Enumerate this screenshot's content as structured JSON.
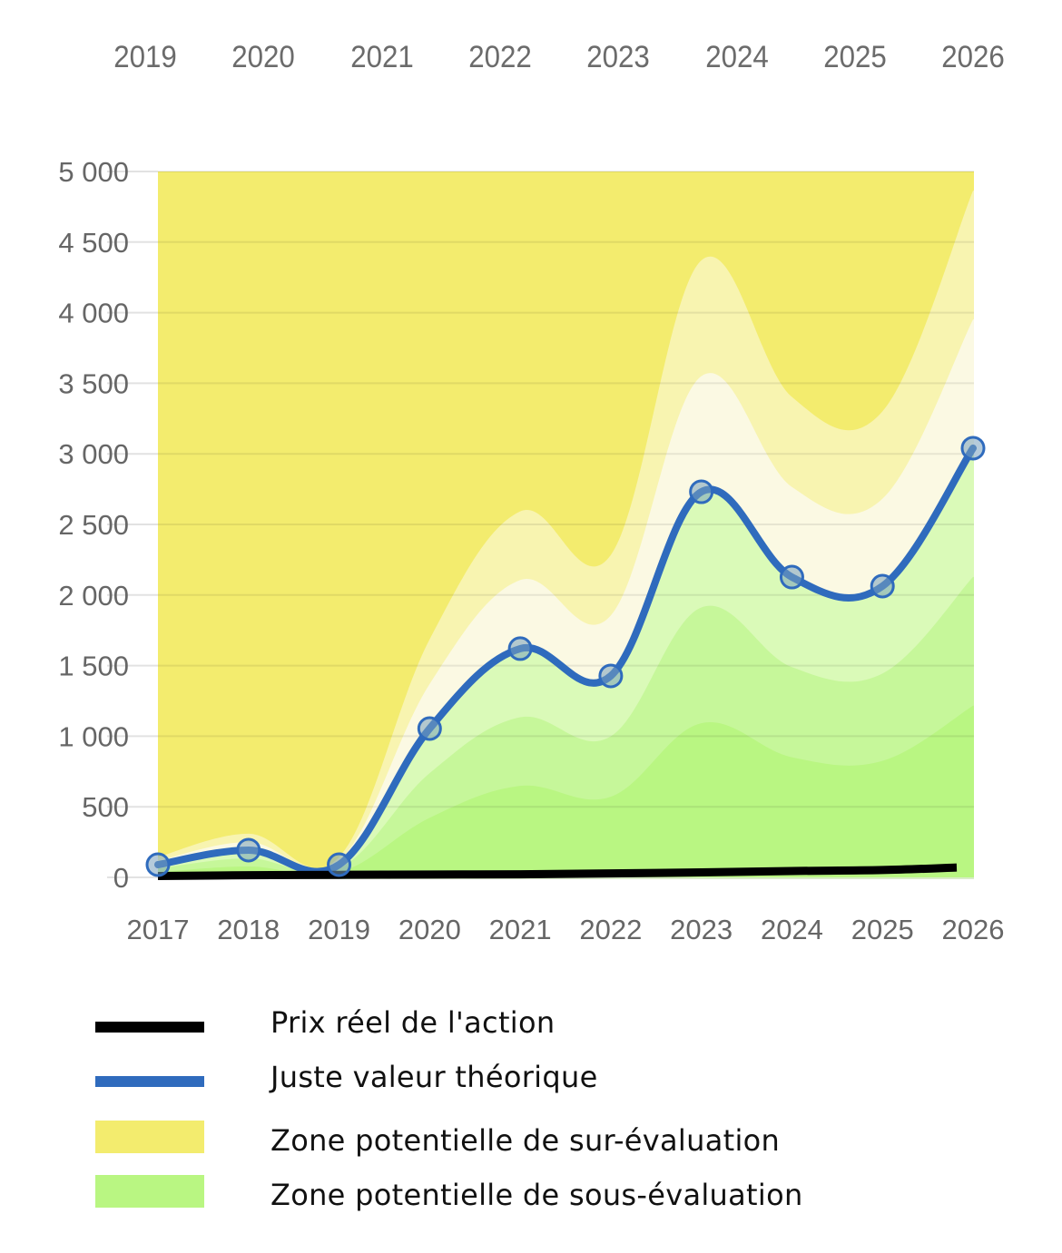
{
  "top_axis": {
    "labels": [
      "2019",
      "2020",
      "2021",
      "2022",
      "2023",
      "2024",
      "2025",
      "2026"
    ]
  },
  "colors": {
    "overvaluation_strong": "#f3ec6e",
    "overvaluation_mid": "#f8f4b0",
    "overvaluation_light": "#fbf9e3",
    "undervaluation_light": "#dafab8",
    "undervaluation_mid": "#c6f79a",
    "undervaluation_strong": "#b9f682",
    "fair_value_line": "#2f6bbd",
    "price_line": "#000000",
    "grid": "#e2e2e2",
    "tick_text": "#666666"
  },
  "chart_data": {
    "type": "area",
    "title": "",
    "xlabel": "",
    "ylabel": "",
    "x": [
      2017,
      2018,
      2019,
      2020,
      2021,
      2022,
      2023,
      2024,
      2025,
      2026
    ],
    "x_tick_labels": [
      "2017",
      "2018",
      "2019",
      "2020",
      "2021",
      "2022",
      "2023",
      "2024",
      "2025",
      "2026"
    ],
    "ylim": [
      0,
      5000
    ],
    "y_ticks": [
      0,
      500,
      1000,
      1500,
      2000,
      2500,
      3000,
      3500,
      4000,
      4500,
      5000
    ],
    "y_tick_labels": [
      "0",
      "500",
      "1 000",
      "1 500",
      "2 000",
      "2 500",
      "3 000",
      "3 500",
      "4 000",
      "4 500",
      "5 000"
    ],
    "grid": true,
    "series": [
      {
        "name": "Juste valeur théorique",
        "type": "line",
        "values": [
          90,
          193,
          90,
          1054,
          1620,
          1427,
          2731,
          2127,
          2063,
          3040
        ]
      },
      {
        "name": "Prix réel de l'action",
        "type": "line",
        "values": [
          10,
          15,
          18,
          20,
          22,
          28,
          35,
          45,
          52,
          70
        ]
      }
    ],
    "bands": [
      {
        "name": "sur-évaluation forte",
        "multiplier": 1.6,
        "values": [
          144,
          309,
          144,
          1686,
          2592,
          2283,
          4370,
          3403,
          3301,
          4864
        ]
      },
      {
        "name": "sur-évaluation modérée",
        "multiplier": 1.3,
        "values": [
          117,
          251,
          117,
          1370,
          2106,
          1855,
          3550,
          2765,
          2682,
          3952
        ]
      },
      {
        "name": "sous-évaluation modérée",
        "multiplier": 0.7,
        "values": [
          63,
          135,
          63,
          738,
          1134,
          999,
          1912,
          1489,
          1444,
          2128
        ]
      },
      {
        "name": "sous-évaluation forte",
        "multiplier": 0.4,
        "values": [
          36,
          77,
          36,
          422,
          648,
          571,
          1092,
          851,
          825,
          1216
        ]
      }
    ],
    "legend": [
      {
        "label": "Prix réel de l'action",
        "kind": "line",
        "color": "#000000"
      },
      {
        "label": "Juste valeur théorique",
        "kind": "line",
        "color": "#2f6bbd"
      },
      {
        "label": "Zone potentielle de sur-évaluation",
        "kind": "area",
        "color": "#f3ec6e"
      },
      {
        "label": "Zone potentielle de sous-évaluation",
        "kind": "area",
        "color": "#b9f682"
      }
    ],
    "legend_position": "bottom"
  }
}
